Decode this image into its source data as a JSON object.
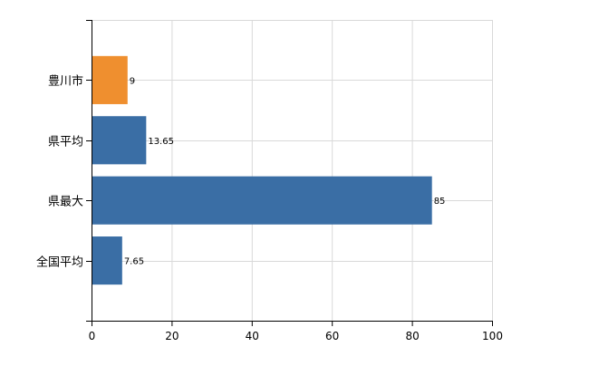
{
  "chart_data": {
    "type": "bar",
    "orientation": "horizontal",
    "categories": [
      "豊川市",
      "県平均",
      "県最大",
      "全国平均"
    ],
    "values": [
      9,
      13.65,
      85,
      7.65
    ],
    "data_labels": [
      "9",
      "13.65",
      "85",
      "7.65"
    ],
    "bar_colors": [
      "#ef8f2f",
      "#3a6ea5",
      "#3a6ea5",
      "#3a6ea5"
    ],
    "xlim": [
      0,
      100
    ],
    "x_ticks": [
      0,
      20,
      40,
      60,
      80,
      100
    ],
    "x_tick_labels": [
      "0",
      "20",
      "40",
      "60",
      "80",
      "100"
    ],
    "grid": true,
    "legend": "none"
  }
}
